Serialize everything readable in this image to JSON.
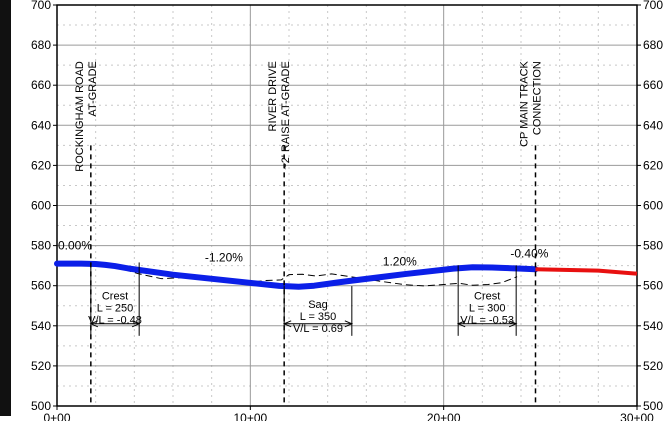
{
  "colors": {
    "proposed_profile": "#0b1fe8",
    "extension_profile": "#e81010",
    "existing_ground": "#000000",
    "grid_major": "#9a9a9a",
    "grid_minor": "#c8c8c8",
    "frame": "#000000"
  },
  "chart_data": {
    "type": "line",
    "title": "",
    "xlabel": "",
    "ylabel": "",
    "xlim": [
      0,
      3000
    ],
    "ylim": [
      500,
      700
    ],
    "grid": true,
    "x_ticks": [
      {
        "value": 0,
        "label": "0+00"
      },
      {
        "value": 1000,
        "label": "10+00"
      },
      {
        "value": 2000,
        "label": "20+00"
      },
      {
        "value": 3000,
        "label": "30+00"
      }
    ],
    "y_ticks": [
      {
        "value": 500,
        "label": "500"
      },
      {
        "value": 520,
        "label": "520"
      },
      {
        "value": 540,
        "label": "540"
      },
      {
        "value": 560,
        "label": "560"
      },
      {
        "value": 580,
        "label": "580"
      },
      {
        "value": 600,
        "label": "600"
      },
      {
        "value": 620,
        "label": "620"
      },
      {
        "value": 640,
        "label": "640"
      },
      {
        "value": 660,
        "label": "660"
      },
      {
        "value": 680,
        "label": "680"
      },
      {
        "value": 700,
        "label": "700"
      }
    ],
    "series": [
      {
        "key": "proposed",
        "x": [
          0,
          125,
          200,
          250,
          300,
          375,
          600,
          1150,
          1250,
          1330,
          1400,
          1450,
          1500,
          1800,
          2050,
          2150,
          2250,
          2300,
          2400,
          2475
        ],
        "y": [
          571,
          571,
          570.8,
          570.4,
          569.8,
          568.5,
          565.5,
          559.9,
          559.5,
          560.0,
          560.9,
          561.6,
          562.2,
          565.8,
          568.5,
          569.2,
          569.1,
          568.9,
          568.5,
          568.2
        ]
      },
      {
        "key": "extension",
        "x": [
          2475,
          2800,
          3000
        ],
        "y": [
          568.2,
          567.5,
          566
        ]
      },
      {
        "key": "existing_ground",
        "x": [
          180,
          300,
          420,
          540,
          680,
          820,
          950,
          1080,
          1160,
          1200,
          1270,
          1340,
          1420,
          1560,
          1680,
          1800,
          1900,
          2000,
          2080,
          2150,
          2230,
          2300,
          2380
        ],
        "y": [
          570.5,
          569.5,
          566,
          563.5,
          564.2,
          562.5,
          561.2,
          562.6,
          562.9,
          565.5,
          565.7,
          564.8,
          565.9,
          563.9,
          562.1,
          560.5,
          559.9,
          560.6,
          561.2,
          560.2,
          560.6,
          561.5,
          564.5
        ]
      }
    ],
    "crossings": [
      {
        "x": 175,
        "lines": [
          "ROCKINGHAM ROAD",
          "AT-GRADE"
        ]
      },
      {
        "x": 1175,
        "lines": [
          "RIVER DRIVE",
          "~2' RAISE AT-GRADE"
        ]
      },
      {
        "x": 2475,
        "lines": [
          "CP MAIN TRACK",
          "CONNECTION"
        ]
      }
    ],
    "vertical_curves": [
      {
        "start": 175,
        "end": 425,
        "pvi_y": 571.6,
        "label_y": 553,
        "type": "Crest",
        "length": "L = 250",
        "vl": "V/L = -0.48"
      },
      {
        "start": 1175,
        "end": 1525,
        "pvi_y": 559.8,
        "label_y": 549,
        "type": "Sag",
        "length": "L = 350",
        "vl": "V/L = 0.69"
      },
      {
        "start": 2075,
        "end": 2375,
        "pvi_y": 570.2,
        "label_y": 553,
        "type": "Crest",
        "length": "L = 300",
        "vl": "V/L = -0.53"
      }
    ],
    "grade_labels": [
      {
        "text": "0.00%",
        "x": 0,
        "y": 578
      },
      {
        "text": "-1.20%",
        "x": 760,
        "y": 572
      },
      {
        "text": "1.20%",
        "x": 1680,
        "y": 570
      },
      {
        "text": "-0.40%",
        "x": 2340,
        "y": 574
      }
    ]
  }
}
